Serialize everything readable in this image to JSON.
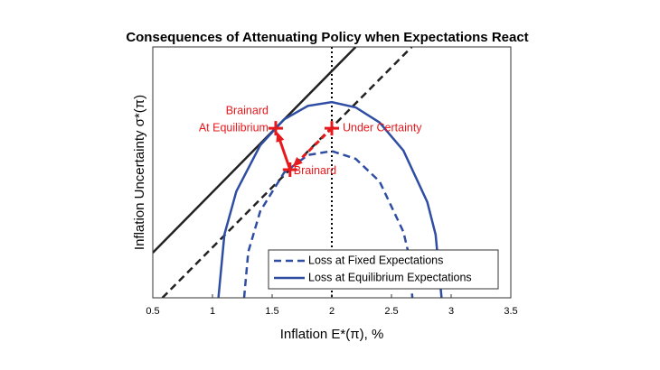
{
  "chart_data": {
    "type": "line",
    "title": "Consequences of Attenuating Policy when Expectations React",
    "xlabel": "Inflation E*(π), %",
    "ylabel": "Inflation Uncertainty σ*(π)",
    "xlim": [
      0.5,
      3.5
    ],
    "xticks": [
      0.5,
      1,
      1.5,
      2,
      2.5,
      3,
      3.5
    ],
    "ylim": [
      0,
      1
    ],
    "vline": 2,
    "legend": "lower right",
    "series": [
      {
        "color": "#222222",
        "dash": false,
        "x": [
          0.5,
          2.2
        ],
        "values": [
          0.18,
          1
        ]
      },
      {
        "color": "#222222",
        "dash": true,
        "x": [
          0.58,
          2.67
        ],
        "values": [
          0,
          1
        ]
      },
      {
        "name": "Loss at Fixed Expectations",
        "color": "#2f4ea3",
        "dash": true,
        "x": [
          1.265,
          1.3,
          1.4,
          1.6,
          1.8,
          2.0,
          2.2,
          2.4,
          2.6,
          2.64,
          2.675
        ],
        "values": [
          0,
          0.183,
          0.345,
          0.499,
          0.569,
          0.585,
          0.554,
          0.464,
          0.263,
          0.182,
          0
        ]
      },
      {
        "name": "Loss at Equilibrium Expectations",
        "color": "#2f4ea3",
        "dash": false,
        "x": [
          1.05,
          1.1,
          1.2,
          1.4,
          1.6,
          1.8,
          2.0,
          2.2,
          2.4,
          2.6,
          2.8,
          2.87,
          2.92
        ],
        "values": [
          0,
          0.252,
          0.424,
          0.608,
          0.711,
          0.765,
          0.78,
          0.759,
          0.699,
          0.587,
          0.382,
          0.252,
          0
        ]
      }
    ],
    "points": {
      "color": "#e8191c",
      "labels": [
        [
          "Brainard",
          "At Equilibrium"
        ],
        [
          "Under Certainty"
        ],
        [
          "Brainard"
        ]
      ],
      "x": [
        1.53,
        2.0,
        1.65
      ],
      "values": [
        0.676,
        0.676,
        0.511
      ]
    }
  }
}
